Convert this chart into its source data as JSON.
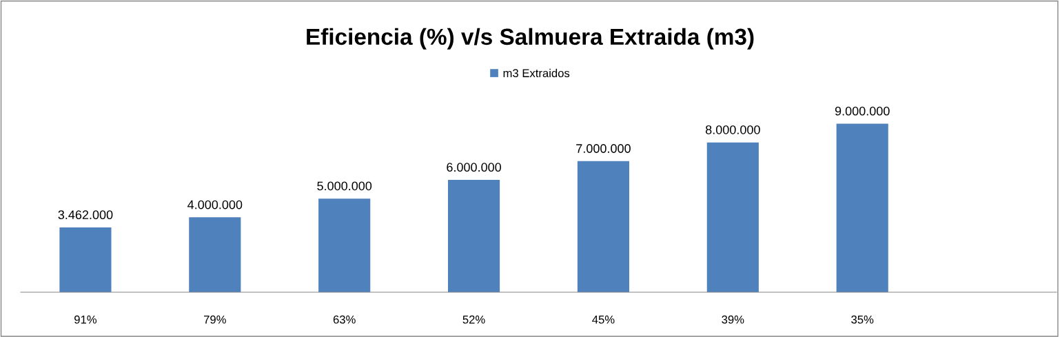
{
  "chart_data": {
    "type": "bar",
    "title": "Eficiencia (%) v/s Salmuera Extraida (m3)",
    "categories": [
      "91%",
      "79%",
      "63%",
      "52%",
      "45%",
      "39%",
      "35%",
      null
    ],
    "series": [
      {
        "name": "m3 Extraidos",
        "color": "#4f81bd",
        "values": [
          3462000,
          4000000,
          5000000,
          6000000,
          7000000,
          8000000,
          9000000,
          null
        ],
        "value_labels": [
          "3.462.000",
          "4.000.000",
          "5.000.000",
          "6.000.000",
          "7.000.000",
          "8.000.000",
          "9.000.000",
          null
        ]
      }
    ],
    "tick_labels": "x",
    "grid": false,
    "legend": "top"
  }
}
